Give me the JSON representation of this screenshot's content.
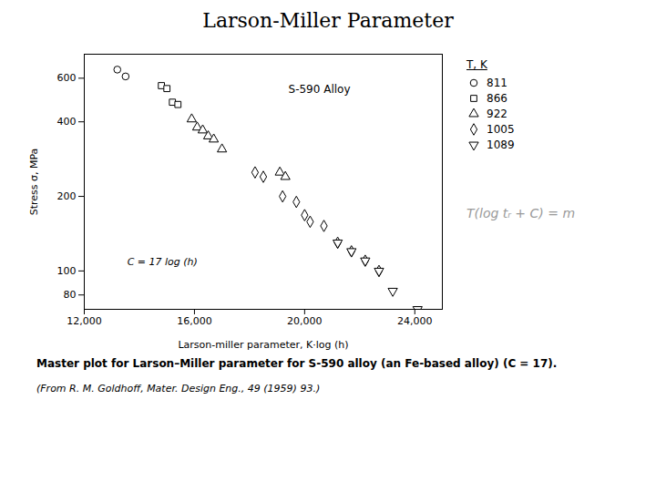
{
  "chart_data": {
    "type": "scatter",
    "title": "Larson-Miller Parameter",
    "xlabel": "Larson-miller parameter, K·log (h)",
    "ylabel": "Stress σ, MPa",
    "log": "y",
    "grid": false,
    "legend": "right",
    "legend_title": "T, K",
    "xlim": [
      12000,
      25000
    ],
    "xticks": [
      {
        "value": 12000,
        "label": "12,000"
      },
      {
        "value": 16000,
        "label": "16,000"
      },
      {
        "value": 20000,
        "label": "20,000"
      },
      {
        "value": 24000,
        "label": "24,000"
      }
    ],
    "ylim": [
      70,
      750
    ],
    "yticks": [
      80,
      100,
      200,
      400,
      600
    ],
    "series": [
      {
        "name": "811",
        "marker": "circle",
        "color": "#000000",
        "x": [
          13200,
          13500
        ],
        "values": [
          650,
          610
        ]
      },
      {
        "name": "866",
        "marker": "square",
        "color": "#000000",
        "x": [
          14800,
          15000,
          15200,
          15400
        ],
        "values": [
          560,
          545,
          480,
          470
        ]
      },
      {
        "name": "922",
        "marker": "triangle",
        "color": "#000000",
        "x": [
          15900,
          16100,
          16300,
          16500,
          16700,
          17000,
          19100,
          19300
        ],
        "values": [
          410,
          380,
          370,
          350,
          340,
          310,
          250,
          240
        ]
      },
      {
        "name": "1005",
        "marker": "diamond",
        "color": "#000000",
        "x": [
          18200,
          18500,
          19200,
          19700,
          20000,
          20200,
          20700,
          21200,
          21700,
          22200,
          22700
        ],
        "values": [
          250,
          240,
          200,
          190,
          168,
          158,
          152,
          130,
          120,
          110,
          100
        ]
      },
      {
        "name": "1089",
        "marker": "triangle-down",
        "color": "#000000",
        "x": [
          21200,
          21700,
          22200,
          22700,
          23200,
          24100
        ],
        "values": [
          130,
          120,
          110,
          100,
          83,
          70
        ]
      }
    ],
    "annotations": [
      "S-590 Alloy",
      "C = 17 log (h)",
      "T(log tᵣ + C) = m"
    ],
    "captions": [
      "Master plot for Larson–Miller parameter for S-590 alloy (an Fe-based alloy) (C = 17).",
      "(From R. M. Goldhoff, Mater. Design Eng., 49 (1959) 93.)"
    ]
  }
}
